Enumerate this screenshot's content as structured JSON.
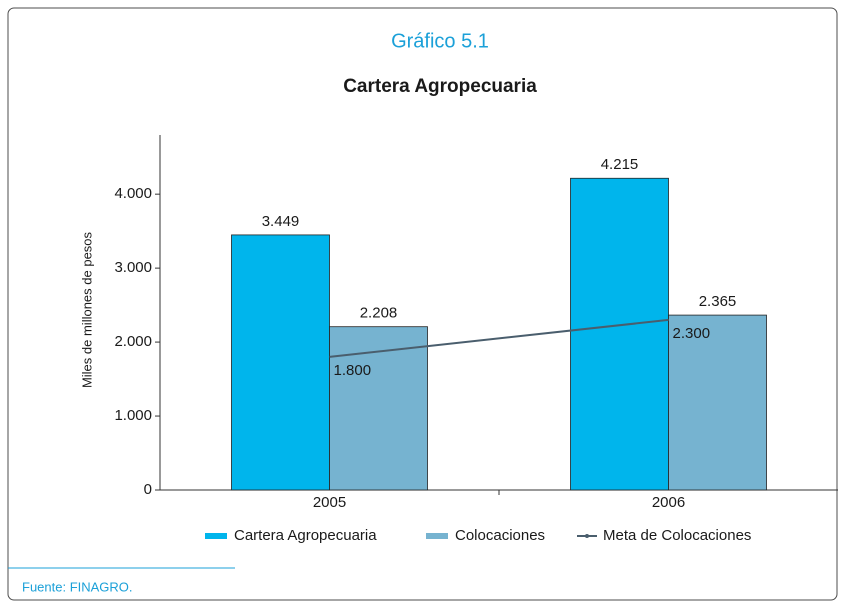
{
  "chart_data": {
    "type": "bar",
    "title": "Gráfico 5.1",
    "subtitle": "Cartera Agropecuaria",
    "y_label": "Miles de millones de pesos",
    "categories": [
      "2005",
      "2006"
    ],
    "series": [
      {
        "name": "Cartera Agropecuaria",
        "type": "bar",
        "color": "#00b5ec",
        "values": [
          3449,
          4215
        ],
        "value_labels": [
          "3.449",
          "4.215"
        ]
      },
      {
        "name": "Colocaciones",
        "type": "bar",
        "color": "#76b3d0",
        "values": [
          2208,
          2365
        ],
        "value_labels": [
          "2.208",
          "2.365"
        ]
      },
      {
        "name": "Meta de Colocaciones",
        "type": "line",
        "color": "#4a5e6d",
        "values": [
          1800,
          2300
        ],
        "value_labels": [
          "1.800",
          "2.300"
        ]
      }
    ],
    "ylim": [
      0,
      4800
    ],
    "yticks": [
      0,
      {
        "value": 1000,
        "label": "1.000"
      },
      {
        "value": 2000,
        "label": "2.000"
      },
      {
        "value": 3000,
        "label": "3.000"
      },
      {
        "value": 4000,
        "label": "4.000"
      }
    ],
    "legend": "bottom",
    "source": "Fuente: FINAGRO."
  }
}
